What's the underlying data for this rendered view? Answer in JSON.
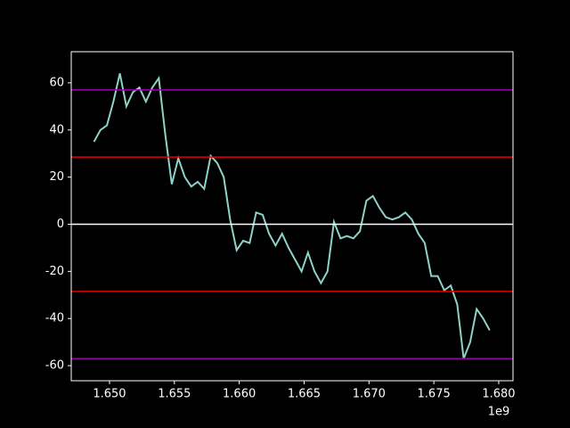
{
  "chart_data": {
    "type": "line",
    "x": [
      1648800000,
      1649300000,
      1649800000,
      1650300000,
      1650800000,
      1651300000,
      1651800000,
      1652300000,
      1652800000,
      1653300000,
      1653800000,
      1654300000,
      1654800000,
      1655300000,
      1655800000,
      1656300000,
      1656800000,
      1657300000,
      1657800000,
      1658300000,
      1658800000,
      1659300000,
      1659800000,
      1660300000,
      1660800000,
      1661300000,
      1661800000,
      1662300000,
      1662800000,
      1663300000,
      1663800000,
      1664300000,
      1664800000,
      1665300000,
      1665800000,
      1666300000,
      1666800000,
      1667300000,
      1667800000,
      1668300000,
      1668800000,
      1669300000,
      1669800000,
      1670300000,
      1670800000,
      1671300000,
      1671800000,
      1672300000,
      1672800000,
      1673300000,
      1673800000,
      1674300000,
      1674800000,
      1675300000,
      1675800000,
      1676300000,
      1676800000,
      1677300000,
      1677800000,
      1678300000,
      1678800000,
      1679300000
    ],
    "series": [
      {
        "color": "#8dd3c7",
        "values": [
          35,
          40,
          42,
          52,
          64,
          50,
          56,
          58,
          52,
          58,
          62,
          38,
          17,
          28,
          20,
          16,
          18,
          15,
          29,
          26,
          20,
          2,
          -11,
          -7,
          -8,
          5,
          4,
          -4,
          -9,
          -4,
          -10,
          -15,
          -20,
          -12,
          -20,
          -25,
          -20,
          1,
          -6,
          -5,
          -6,
          -3,
          10,
          12,
          7,
          3,
          2,
          3,
          5,
          2,
          -4,
          -8,
          -22,
          -22,
          -28,
          -26,
          -34,
          -57,
          -50,
          -36,
          -40,
          -45
        ]
      }
    ],
    "hlines": [
      {
        "value": 57,
        "color": "#a000b0"
      },
      {
        "value": 28.5,
        "color": "#e00000"
      },
      {
        "value": 0,
        "color": "#ffffff"
      },
      {
        "value": -28.5,
        "color": "#e00000"
      },
      {
        "value": -57,
        "color": "#a000b0"
      }
    ],
    "xlim": [
      1647050000,
      1681100000
    ],
    "ylim": [
      -66.4,
      73.2
    ],
    "xticks": [
      {
        "value": 1650000000,
        "label": "1.650"
      },
      {
        "value": 1655000000,
        "label": "1.655"
      },
      {
        "value": 1660000000,
        "label": "1.660"
      },
      {
        "value": 1665000000,
        "label": "1.665"
      },
      {
        "value": 1670000000,
        "label": "1.670"
      },
      {
        "value": 1675000000,
        "label": "1.675"
      },
      {
        "value": 1680000000,
        "label": "1.680"
      }
    ],
    "x_offset_label": "1e9",
    "yticks": [
      -60,
      -40,
      -20,
      0,
      20,
      40,
      60
    ]
  }
}
